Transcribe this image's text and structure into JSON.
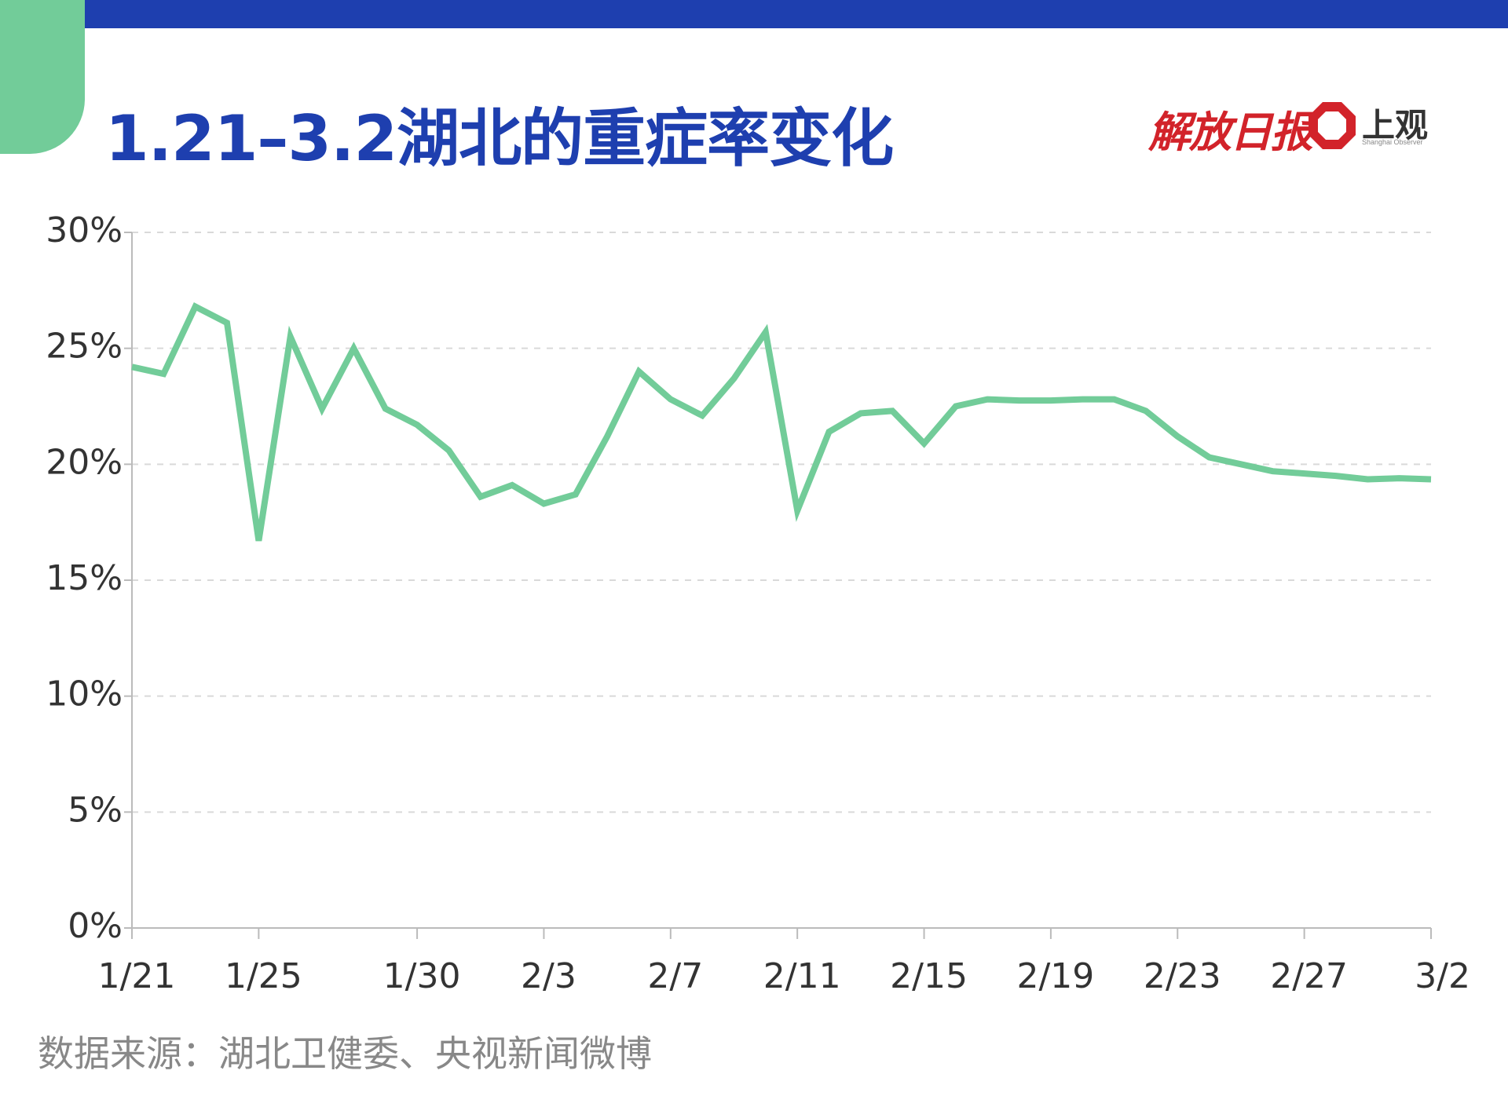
{
  "colors": {
    "brand_blue": "#1e3faf",
    "accent_green": "#72cc99",
    "logo_red": "#d2232a",
    "axis_gray": "#bbbbbb",
    "grid_gray": "#d9d9d9",
    "text_dark": "#333333",
    "text_gray": "#888888"
  },
  "header": {
    "title": "1.21–3.2湖北的重症率变化"
  },
  "logos": {
    "jiefang_daily": "解放日报",
    "shangguan": "上观",
    "shangguan_en": "Shanghai Observer"
  },
  "source_note": "数据来源：湖北卫健委、央视新闻微博",
  "chart_data": {
    "type": "line",
    "title": "1.21–3.2湖北的重症率变化",
    "xlabel": "",
    "ylabel": "",
    "ylim": [
      0,
      30
    ],
    "yticks": [
      0,
      5,
      10,
      15,
      20,
      25,
      30
    ],
    "ytick_labels": [
      "0%",
      "5%",
      "10%",
      "15%",
      "20%",
      "25%",
      "30%"
    ],
    "xtick_labels": [
      "1/21",
      "1/25",
      "1/30",
      "2/3",
      "2/7",
      "2/11",
      "2/15",
      "2/19",
      "2/23",
      "2/27",
      "3/2"
    ],
    "grid": true,
    "series": [
      {
        "name": "",
        "color": "#72cc99",
        "points": [
          [
            "1/21",
            24.2
          ],
          [
            "1/22",
            23.9
          ],
          [
            "1/23",
            26.8
          ],
          [
            "1/24",
            26.1
          ],
          [
            "1/25",
            16.7
          ],
          [
            "1/26",
            25.5
          ],
          [
            "1/27",
            22.4
          ],
          [
            "1/28",
            25.0
          ],
          [
            "1/29",
            22.4
          ],
          [
            "1/30",
            21.7
          ],
          [
            "1/31",
            20.6
          ],
          [
            "2/1",
            18.6
          ],
          [
            "2/2",
            19.1
          ],
          [
            "2/3",
            18.3
          ],
          [
            "2/4",
            18.7
          ],
          [
            "2/5",
            21.2
          ],
          [
            "2/6",
            24.0
          ],
          [
            "2/7",
            22.8
          ],
          [
            "2/8",
            22.1
          ],
          [
            "2/9",
            23.7
          ],
          [
            "2/10",
            25.7
          ],
          [
            "2/11",
            18.0
          ],
          [
            "2/12",
            21.4
          ],
          [
            "2/13",
            22.2
          ],
          [
            "2/14",
            22.3
          ],
          [
            "2/15",
            20.9
          ],
          [
            "2/16",
            22.5
          ],
          [
            "2/17",
            22.8
          ],
          [
            "2/18",
            22.75
          ],
          [
            "2/19",
            22.75
          ],
          [
            "2/20",
            22.8
          ],
          [
            "2/21",
            22.8
          ],
          [
            "2/22",
            22.3
          ],
          [
            "2/23",
            21.2
          ],
          [
            "2/24",
            20.3
          ],
          [
            "2/25",
            20.0
          ],
          [
            "2/26",
            19.7
          ],
          [
            "2/27",
            19.6
          ],
          [
            "2/28",
            19.5
          ],
          [
            "2/29",
            19.35
          ],
          [
            "3/1",
            19.4
          ],
          [
            "3/2",
            19.35
          ]
        ]
      }
    ]
  }
}
